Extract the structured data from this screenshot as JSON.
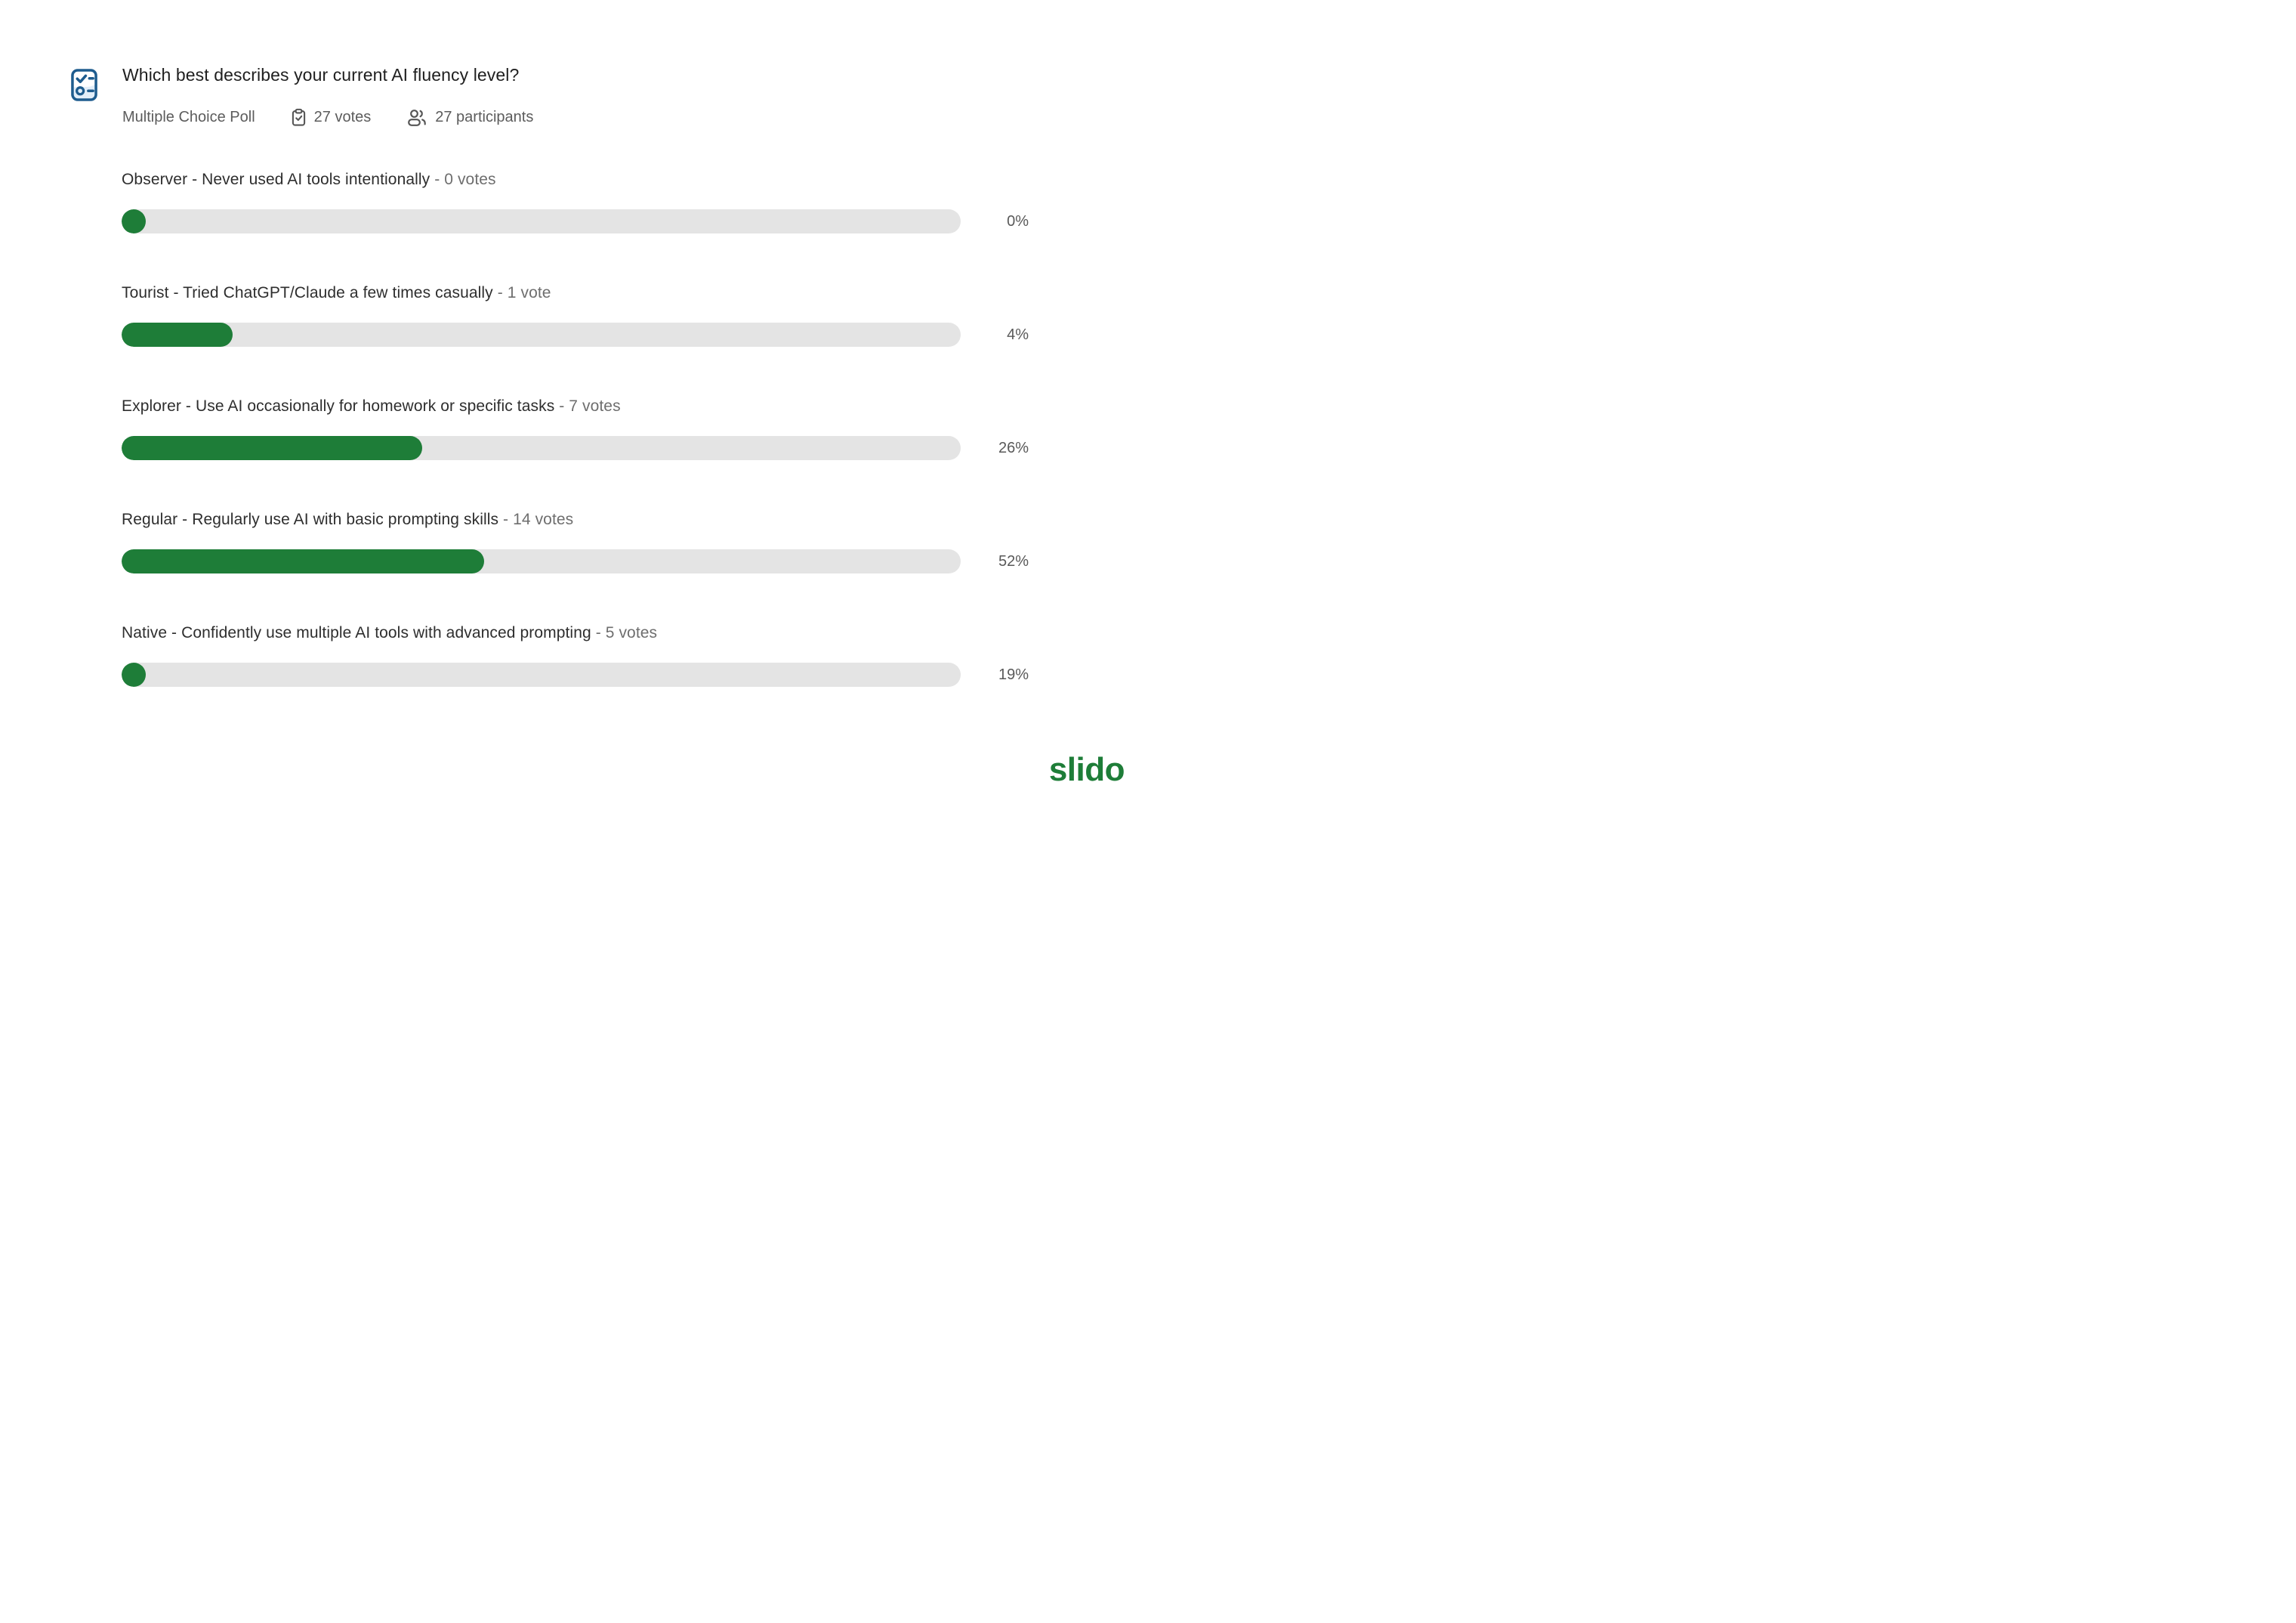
{
  "header": {
    "title": "Which best describes your current AI fluency level?",
    "poll_type": "Multiple Choice Poll",
    "votes_label": "27 votes",
    "participants_label": "27 participants",
    "icons": {
      "poll_icon": "multiple-choice-checklist-icon",
      "votes_icon": "clipboard-check-icon",
      "participants_icon": "people-icon"
    }
  },
  "options": [
    {
      "label": "Observer - Never used AI tools intentionally",
      "separator": "-",
      "votes_text": "0 votes",
      "percent_label": "0%",
      "fill_percent_visual": 2.9
    },
    {
      "label": "Tourist - Tried ChatGPT/Claude a few times casually",
      "separator": "-",
      "votes_text": "1 vote",
      "percent_label": "4%",
      "fill_percent_visual": 13.2
    },
    {
      "label": "Explorer - Use AI occasionally for homework or specific tasks",
      "separator": "-",
      "votes_text": "7 votes",
      "percent_label": "26%",
      "fill_percent_visual": 35.8
    },
    {
      "label": "Regular - Regularly use AI with basic prompting skills",
      "separator": "-",
      "votes_text": "14 votes",
      "percent_label": "52%",
      "fill_percent_visual": 43.2
    },
    {
      "label": "Native - Confidently use multiple AI tools with advanced prompting",
      "separator": "-",
      "votes_text": "5 votes",
      "percent_label": "19%",
      "fill_percent_visual": 2.9
    }
  ],
  "footer": {
    "logo_text": "slido"
  },
  "colors": {
    "bar_fill": "#1e7d38",
    "bar_track": "#e4e4e4",
    "brand_green": "#1e7d38",
    "icon_blue": "#1e5c8e",
    "meta_gray": "#5c5c5c"
  },
  "chart_data": {
    "type": "bar",
    "orientation": "horizontal",
    "title": "Which best describes your current AI fluency level?",
    "categories": [
      "Observer - Never used AI tools intentionally",
      "Tourist - Tried ChatGPT/Claude a few times casually",
      "Explorer - Use AI occasionally for homework or specific tasks",
      "Regular - Regularly use AI with basic prompting skills",
      "Native - Confidently use multiple AI tools with advanced prompting"
    ],
    "series": [
      {
        "name": "votes",
        "values": [
          0,
          1,
          7,
          14,
          5
        ]
      },
      {
        "name": "percent",
        "values": [
          0,
          4,
          26,
          52,
          19
        ]
      }
    ],
    "total_votes": 27,
    "total_participants": 27,
    "legend_position": "none",
    "grid": false
  }
}
